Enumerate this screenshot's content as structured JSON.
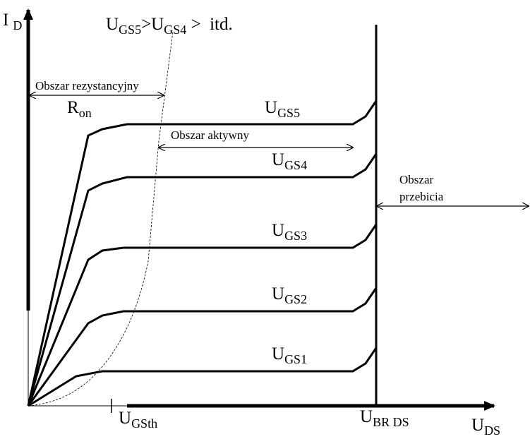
{
  "axes": {
    "y": {
      "main": "I",
      "sub": "D"
    },
    "x": {
      "main": "U",
      "sub": "DS"
    }
  },
  "headline": {
    "parts": [
      "U",
      "GS5",
      ">U",
      "GS4",
      " >  itd."
    ]
  },
  "regions": {
    "ohmic": "Obszar rezystancyjny",
    "ron": {
      "main": "R",
      "sub": "on"
    },
    "active": "Obszar aktywny",
    "breakdown": [
      "Obszar",
      "przebicia"
    ]
  },
  "curves": [
    {
      "main": "U",
      "sub": "GS5"
    },
    {
      "main": "U",
      "sub": "GS4"
    },
    {
      "main": "U",
      "sub": "GS3"
    },
    {
      "main": "U",
      "sub": "GS2"
    },
    {
      "main": "U",
      "sub": "GS1"
    }
  ],
  "markers": {
    "threshold": {
      "main": "U",
      "sub": "GSth"
    },
    "breakdown": {
      "main": "U",
      "sub": "BR DS"
    }
  }
}
